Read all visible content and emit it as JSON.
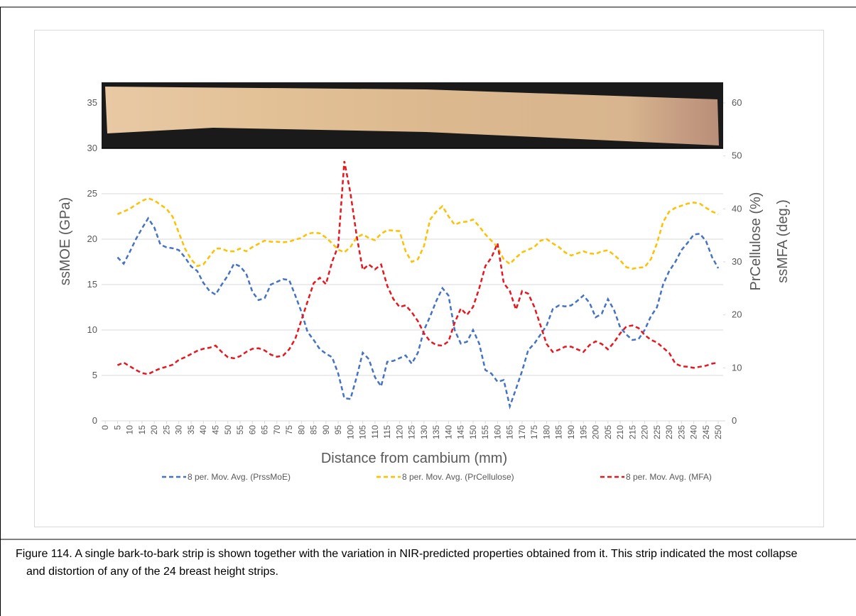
{
  "chart_data": {
    "type": "line",
    "ylabel": "ssMOE (GPa)",
    "y2label": [
      "PrCellulose (%)",
      "ssMFA (deg.)"
    ],
    "xlabel": "Distance from cambium (mm)",
    "xlim": [
      -1.5,
      252
    ],
    "xticks": [
      0,
      5,
      10,
      15,
      20,
      25,
      30,
      35,
      40,
      45,
      50,
      55,
      60,
      65,
      70,
      75,
      80,
      85,
      90,
      95,
      100,
      105,
      110,
      115,
      120,
      125,
      130,
      135,
      140,
      145,
      150,
      155,
      160,
      165,
      170,
      175,
      180,
      185,
      190,
      195,
      200,
      205,
      210,
      215,
      220,
      225,
      230,
      235,
      240,
      245,
      250
    ],
    "ylim": [
      0,
      35
    ],
    "yticks": [
      0,
      5,
      10,
      15,
      20,
      25,
      30,
      35
    ],
    "y2lim": [
      0,
      60
    ],
    "y2ticks": [
      0,
      10,
      20,
      30,
      40,
      50,
      60
    ],
    "grid": true,
    "x": [
      5,
      7.5,
      10,
      12.5,
      15,
      17.5,
      20,
      22.5,
      25,
      27.5,
      30,
      32.5,
      35,
      37.5,
      40,
      42.5,
      45,
      47.5,
      50,
      52.5,
      55,
      57.5,
      60,
      62.5,
      65,
      67.5,
      70,
      72.5,
      75,
      77.5,
      80,
      82.5,
      85,
      87.5,
      90,
      92.5,
      95,
      97.5,
      100,
      102.5,
      105,
      107.5,
      110,
      112.5,
      115,
      117.5,
      120,
      122.5,
      125,
      127.5,
      130,
      132.5,
      135,
      137.5,
      140,
      142.5,
      145,
      147.5,
      150,
      152.5,
      155,
      157.5,
      160,
      162.5,
      165,
      167.5,
      170,
      172.5,
      175,
      177.5,
      180,
      182.5,
      185,
      187.5,
      190,
      192.5,
      195,
      197.5,
      200,
      202.5,
      205,
      207.5,
      210,
      212.5,
      215,
      217.5,
      220,
      222.5,
      225,
      227.5,
      230,
      232.5,
      235,
      237.5,
      240,
      242.5,
      245,
      247.5,
      250
    ],
    "series": [
      {
        "name": "8 per. Mov. Avg. (PrssMoE)",
        "color": "#4472c4",
        "axis": "y",
        "values": [
          18,
          17.3,
          18.6,
          20,
          21.2,
          22.3,
          21.3,
          19.4,
          19.1,
          19,
          18.8,
          18,
          17,
          16.5,
          15.2,
          14.3,
          13.9,
          15,
          16,
          17.3,
          17,
          16.2,
          14.2,
          13.3,
          13.5,
          15,
          15.3,
          15.6,
          15.5,
          13.8,
          12,
          9.8,
          8.9,
          7.9,
          7.4,
          7,
          5.2,
          2.5,
          2.4,
          4.8,
          7.5,
          6.8,
          4.8,
          3.8,
          6.5,
          6.6,
          6.9,
          7.2,
          6.3,
          7.5,
          10,
          11.5,
          13.2,
          14.6,
          13.8,
          10,
          8.5,
          8.7,
          10,
          8.5,
          5.6,
          5.2,
          4.3,
          4.5,
          1.6,
          3.5,
          5.5,
          7.8,
          8.5,
          9.5,
          10.5,
          12.3,
          12.7,
          12.6,
          12.7,
          13.2,
          13.8,
          13,
          11.4,
          11.8,
          13.4,
          12.2,
          10.3,
          9.5,
          8.9,
          9,
          10,
          11.5,
          12.5,
          15,
          16.5,
          17.5,
          18.8,
          19.6,
          20.5,
          20.6,
          19.8,
          18,
          16.8
        ]
      },
      {
        "name": "8 per. Mov. Avg. (PrCellulose)",
        "color": "#ffc000",
        "axis": "y2",
        "values": [
          39,
          39.5,
          40,
          40.8,
          41.5,
          42,
          41.6,
          40.8,
          40,
          38.5,
          35.5,
          32.5,
          30.5,
          29.2,
          29.5,
          31,
          32.5,
          32.5,
          32,
          32,
          32.5,
          32,
          32.8,
          33.4,
          34,
          33.8,
          33.8,
          33.7,
          33.8,
          34.2,
          34.5,
          35.3,
          35.5,
          35.4,
          34.6,
          33.5,
          32.3,
          31.8,
          32.8,
          34.6,
          35.2,
          34.5,
          34.1,
          35.3,
          36,
          35.9,
          35.8,
          32,
          30,
          30.5,
          33,
          38,
          39.5,
          40.5,
          38.6,
          37,
          37.5,
          37.6,
          38,
          36.7,
          35.2,
          34,
          32.8,
          30.5,
          29.6,
          30.8,
          31.8,
          32.3,
          32.8,
          34,
          34.3,
          33.5,
          32.8,
          31.8,
          31.2,
          31.6,
          32,
          31.6,
          31.5,
          32,
          32.2,
          31.3,
          30.3,
          29,
          28.7,
          28.9,
          29,
          30.5,
          33.5,
          37.5,
          39.5,
          40.2,
          40.6,
          41,
          41.2,
          41,
          40.2,
          39.5,
          39
        ]
      },
      {
        "name": "8 per. Mov. Avg. (MFA)",
        "color": "#e8161e",
        "axis": "y2",
        "values": [
          10.5,
          11,
          10.3,
          9.6,
          9,
          8.8,
          9.4,
          9.9,
          10.2,
          10.6,
          11.5,
          12,
          12.6,
          13.2,
          13.6,
          13.8,
          14.2,
          13,
          12,
          11.8,
          12.2,
          13,
          13.6,
          13.7,
          13.3,
          12.5,
          12.1,
          12.3,
          13.5,
          15.5,
          19,
          22.5,
          26,
          27,
          25.8,
          30,
          33,
          49,
          43,
          35,
          28.5,
          29.5,
          28.6,
          29.5,
          25.5,
          23,
          21.5,
          21.8,
          20.5,
          18.8,
          16.5,
          15,
          14.3,
          14.2,
          15,
          18.5,
          21.2,
          20,
          21.5,
          25,
          29.2,
          30.8,
          33.5,
          26,
          24.5,
          21,
          24.5,
          24,
          21.5,
          18,
          14.5,
          13,
          13.4,
          14,
          14,
          13.5,
          13,
          14.3,
          15,
          14.5,
          13.5,
          14.8,
          16.5,
          17.8,
          18,
          17.5,
          16.2,
          15.3,
          14.8,
          13.8,
          12.8,
          10.8,
          10.3,
          10.2,
          10,
          10.2,
          10.4,
          10.8,
          11
        ]
      }
    ]
  },
  "caption": "Figure 114. A single bark-to-bark strip is shown together with the variation in NIR-predicted properties obtained from it. This strip indicated the most collapse and distortion of any of the 24 breast height strips."
}
